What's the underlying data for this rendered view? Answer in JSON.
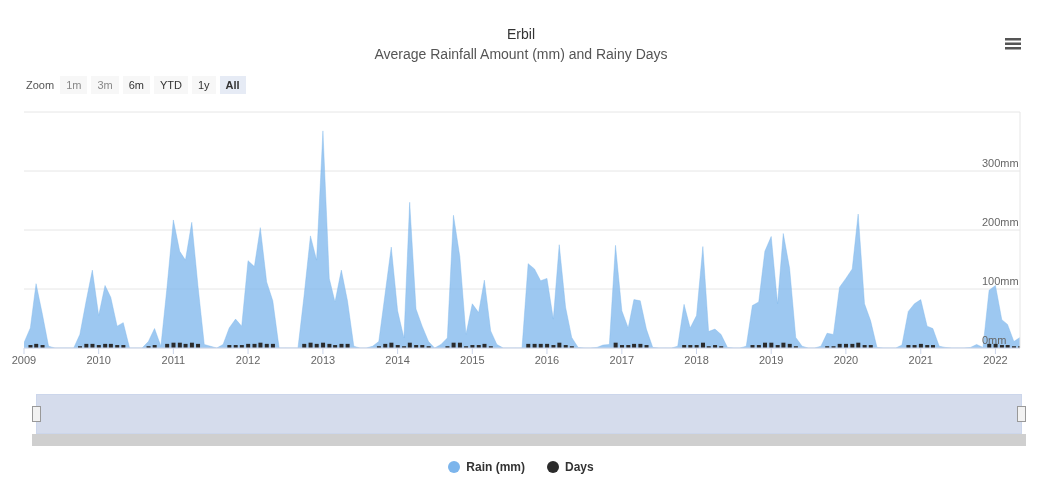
{
  "chart_data": {
    "type": "area",
    "title": "Erbil",
    "subtitle": "Average Rainfall Amount (mm) and Rainy Days",
    "annotations": [
      "Zoom",
      "1m",
      "3m",
      "6m",
      "YTD",
      "1y",
      "All"
    ],
    "x": [
      "2009-01",
      "2009-02",
      "2009-03",
      "2009-04",
      "2009-05",
      "2009-06",
      "2009-07",
      "2009-08",
      "2009-09",
      "2009-10",
      "2009-11",
      "2009-12",
      "2010-01",
      "2010-02",
      "2010-03",
      "2010-04",
      "2010-05",
      "2010-06",
      "2010-07",
      "2010-08",
      "2010-09",
      "2010-10",
      "2010-11",
      "2010-12",
      "2011-01",
      "2011-02",
      "2011-03",
      "2011-04",
      "2011-05",
      "2011-06",
      "2011-07",
      "2011-08",
      "2011-09",
      "2011-10",
      "2011-11",
      "2011-12",
      "2012-01",
      "2012-02",
      "2012-03",
      "2012-04",
      "2012-05",
      "2012-06",
      "2012-07",
      "2012-08",
      "2012-09",
      "2012-10",
      "2012-11",
      "2012-12",
      "2013-01",
      "2013-02",
      "2013-03",
      "2013-04",
      "2013-05",
      "2013-06",
      "2013-07",
      "2013-08",
      "2013-09",
      "2013-10",
      "2013-11",
      "2013-12",
      "2014-01",
      "2014-02",
      "2014-03",
      "2014-04",
      "2014-05",
      "2014-06",
      "2014-07",
      "2014-08",
      "2014-09",
      "2014-10",
      "2014-11",
      "2014-12",
      "2015-01",
      "2015-02",
      "2015-03",
      "2015-04",
      "2015-05",
      "2015-06",
      "2015-07",
      "2015-08",
      "2015-09",
      "2015-10",
      "2015-11",
      "2015-12",
      "2016-01",
      "2016-02",
      "2016-03",
      "2016-04",
      "2016-05",
      "2016-06",
      "2016-07",
      "2016-08",
      "2016-09",
      "2016-10",
      "2016-11",
      "2016-12",
      "2017-01",
      "2017-02",
      "2017-03",
      "2017-04",
      "2017-05",
      "2017-06",
      "2017-07",
      "2017-08",
      "2017-09",
      "2017-10",
      "2017-11",
      "2017-12",
      "2018-01",
      "2018-02",
      "2018-03",
      "2018-04",
      "2018-05",
      "2018-06",
      "2018-07",
      "2018-08",
      "2018-09",
      "2018-10",
      "2018-11",
      "2018-12",
      "2019-01",
      "2019-02",
      "2019-03",
      "2019-04",
      "2019-05",
      "2019-06",
      "2019-07",
      "2019-08",
      "2019-09",
      "2019-10",
      "2019-11",
      "2019-12",
      "2020-01",
      "2020-02",
      "2020-03",
      "2020-04",
      "2020-05",
      "2020-06",
      "2020-07",
      "2020-08",
      "2020-09",
      "2020-10",
      "2020-11",
      "2020-12",
      "2021-01",
      "2021-02",
      "2021-03",
      "2021-04",
      "2021-05",
      "2021-06",
      "2021-07",
      "2021-08",
      "2021-09",
      "2021-10",
      "2021-11",
      "2021-12",
      "2022-01",
      "2022-02",
      "2022-03",
      "2022-04",
      "2022-05"
    ],
    "series": [
      {
        "name": "Rain (mm)",
        "color": "#7cb5ec",
        "values": [
          9,
          34,
          109,
          57,
          3,
          0,
          0,
          0,
          0,
          23,
          80,
          132,
          55,
          106,
          86,
          37,
          43,
          0,
          0,
          0,
          11,
          33,
          3,
          103,
          217,
          164,
          149,
          213,
          106,
          6,
          3,
          0,
          6,
          34,
          49,
          37,
          148,
          138,
          204,
          112,
          80,
          0,
          0,
          0,
          0,
          89,
          190,
          149,
          368,
          118,
          78,
          132,
          80,
          3,
          0,
          0,
          3,
          11,
          92,
          171,
          63,
          17,
          247,
          66,
          37,
          11,
          0,
          6,
          17,
          225,
          155,
          23,
          75,
          60,
          115,
          29,
          6,
          0,
          0,
          0,
          0,
          143,
          134,
          114,
          118,
          49,
          175,
          69,
          18,
          1,
          0,
          0,
          1,
          5,
          6,
          174,
          63,
          34,
          82,
          80,
          32,
          1,
          0,
          0,
          0,
          3,
          74,
          34,
          55,
          172,
          28,
          32,
          23,
          1,
          0,
          0,
          3,
          72,
          78,
          164,
          189,
          75,
          194,
          135,
          18,
          3,
          0,
          0,
          3,
          25,
          23,
          103,
          118,
          134,
          227,
          75,
          46,
          1,
          0,
          0,
          0,
          5,
          62,
          75,
          82,
          37,
          33,
          3,
          1,
          0,
          0,
          0,
          1,
          6,
          1,
          98,
          106,
          48,
          40,
          11,
          18
        ]
      },
      {
        "name": "Days",
        "type": "bar",
        "color": "#2b2b2b",
        "values": [
          null,
          5,
          7,
          5,
          null,
          null,
          null,
          null,
          null,
          3,
          7,
          7,
          5,
          7,
          7,
          5,
          5,
          null,
          null,
          null,
          3,
          5,
          null,
          7,
          9,
          9,
          7,
          9,
          7,
          null,
          null,
          null,
          null,
          5,
          5,
          5,
          7,
          7,
          9,
          7,
          7,
          null,
          null,
          null,
          null,
          7,
          9,
          7,
          9,
          7,
          5,
          7,
          7,
          null,
          null,
          null,
          null,
          3,
          7,
          9,
          5,
          3,
          9,
          5,
          5,
          3,
          null,
          null,
          3,
          9,
          9,
          3,
          5,
          5,
          7,
          3,
          null,
          null,
          null,
          null,
          null,
          7,
          7,
          7,
          7,
          5,
          9,
          5,
          3,
          null,
          null,
          null,
          null,
          null,
          null,
          9,
          5,
          5,
          7,
          7,
          5,
          null,
          null,
          null,
          null,
          null,
          5,
          5,
          5,
          9,
          3,
          5,
          3,
          null,
          null,
          null,
          null,
          5,
          5,
          9,
          9,
          5,
          9,
          7,
          3,
          null,
          null,
          null,
          null,
          3,
          3,
          7,
          7,
          7,
          9,
          5,
          5,
          null,
          null,
          null,
          null,
          null,
          5,
          5,
          7,
          5,
          5,
          null,
          null,
          null,
          null,
          null,
          null,
          null,
          null,
          7,
          7,
          5,
          5,
          3,
          3
        ]
      }
    ],
    "xlim": [
      "2009-01",
      "2022-05"
    ],
    "xticks": [
      "2009",
      "2010",
      "2011",
      "2012",
      "2013",
      "2014",
      "2015",
      "2016",
      "2017",
      "2018",
      "2019",
      "2020",
      "2021",
      "2022"
    ],
    "ylim": [
      0,
      400
    ],
    "yticks": [
      {
        "value": 0,
        "label": "0mm"
      },
      {
        "value": 100,
        "label": "100mm"
      },
      {
        "value": 200,
        "label": "200mm"
      },
      {
        "value": 300,
        "label": "300mm"
      },
      {
        "value": 400,
        "label": null
      }
    ],
    "grid": "y",
    "legend": "bottom"
  }
}
